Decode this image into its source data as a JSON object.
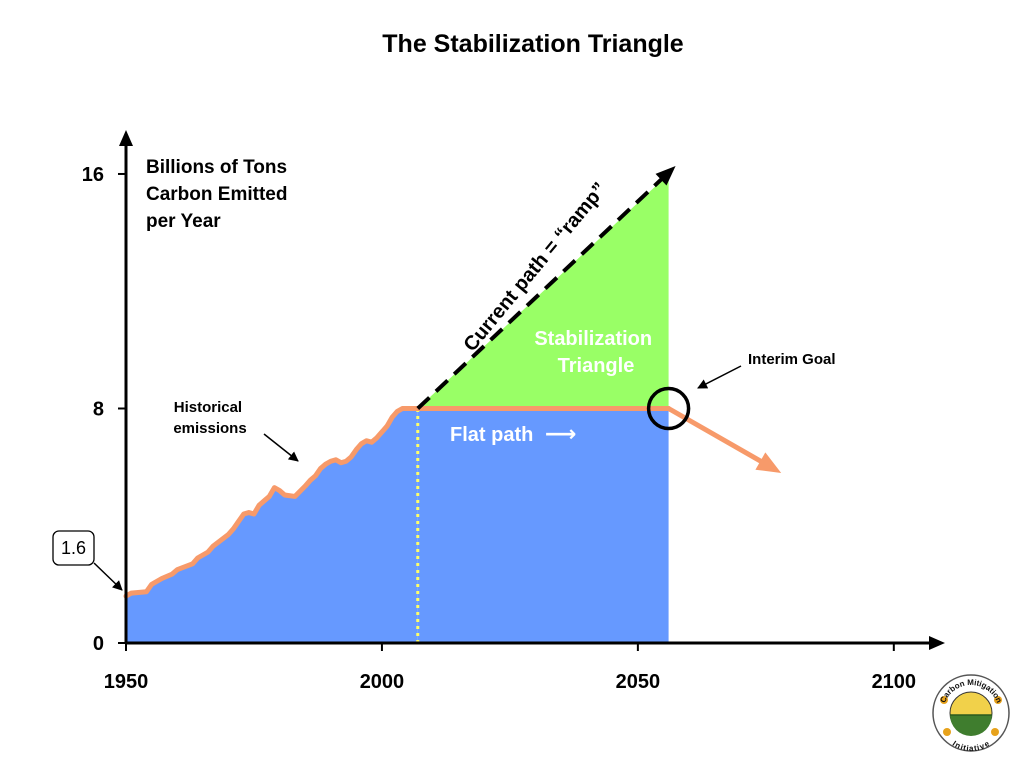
{
  "chart_data": {
    "type": "area",
    "title": "The Stabilization Triangle",
    "ylabel_lines": [
      "Billions of Tons",
      "Carbon Emitted",
      "per Year"
    ],
    "xlim": [
      1950,
      2110
    ],
    "ylim": [
      0,
      17.5
    ],
    "x_ticks": [
      {
        "value": 1950,
        "label": "1950"
      },
      {
        "value": 2000,
        "label": "2000"
      },
      {
        "value": 2050,
        "label": "2050"
      },
      {
        "value": 2100,
        "label": "2100"
      }
    ],
    "y_ticks": [
      {
        "value": 0,
        "label": "0"
      },
      {
        "value": 8,
        "label": "8"
      },
      {
        "value": 16,
        "label": "16"
      }
    ],
    "historical": {
      "name": "Historical emissions",
      "x": [
        1950,
        1951,
        1954,
        1955,
        1957,
        1959,
        1960,
        1963,
        1964,
        1966,
        1967,
        1970,
        1971,
        1972,
        1973,
        1974,
        1975,
        1976,
        1977,
        1978,
        1979,
        1980,
        1981,
        1983,
        1985,
        1986,
        1987,
        1988,
        1989,
        1990,
        1991,
        1992,
        1993,
        1994,
        1995,
        1996,
        1997,
        1998,
        1999,
        2000,
        2001,
        2002,
        2003,
        2004,
        2005,
        2006,
        2007
      ],
      "y": [
        1.6,
        1.7,
        1.75,
        2.0,
        2.2,
        2.35,
        2.5,
        2.7,
        2.9,
        3.1,
        3.3,
        3.7,
        3.9,
        4.15,
        4.4,
        4.45,
        4.4,
        4.7,
        4.85,
        5.0,
        5.3,
        5.2,
        5.05,
        5.0,
        5.35,
        5.55,
        5.7,
        5.95,
        6.1,
        6.2,
        6.25,
        6.15,
        6.2,
        6.35,
        6.6,
        6.8,
        6.9,
        6.85,
        7.0,
        7.2,
        7.4,
        7.7,
        7.9,
        8.0,
        8.0,
        8.0,
        8.0
      ]
    },
    "current_path": {
      "label": "Current path = “ramp”",
      "x": [
        2007,
        2056
      ],
      "y": [
        8,
        16
      ]
    },
    "flat_path": {
      "label": "Flat path",
      "arrow": "⟶",
      "x": [
        2007,
        2056
      ],
      "y": [
        8,
        8
      ]
    },
    "future_decline": {
      "x": [
        2056,
        2078
      ],
      "y": [
        8,
        5.8
      ]
    },
    "interim_goal": {
      "label": "Interim Goal",
      "x": 2056,
      "y": 8
    },
    "stabilization_triangle": {
      "label_lines": [
        "Stabilization",
        "Triangle"
      ]
    },
    "historical_label_lines": [
      "Historical",
      "emissions"
    ],
    "start_value_label": "1.6",
    "colors": {
      "historical_fill": "#6699ff",
      "triangle_fill": "#99ff66",
      "emissions_line": "#f79a6a",
      "ramp_line": "#000000",
      "divider": "#ffff66",
      "axis": "#000000"
    }
  },
  "logo": {
    "name": "Carbon Mitigation Initiative",
    "top_text": "Carbon Mitigation",
    "bottom_text": "Initiative"
  }
}
